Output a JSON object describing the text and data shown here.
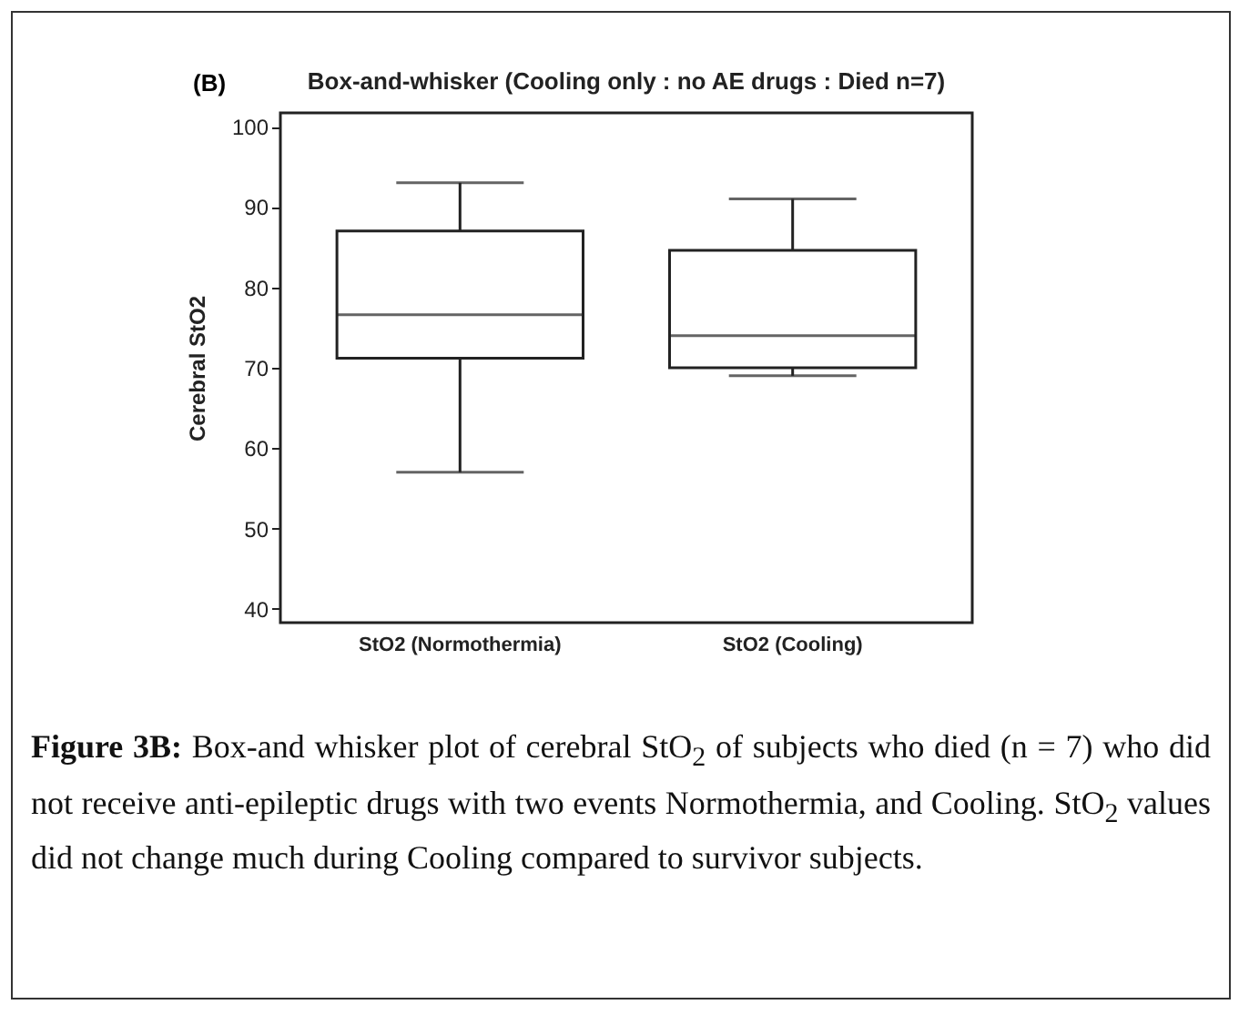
{
  "chart_data": {
    "type": "box",
    "title": "Box-and-whisker (Cooling only : no AE drugs : Died n=7)",
    "ylabel": "Cerebral StO2",
    "categories": [
      "StO2 (Normothermia)",
      "StO2 (Cooling)"
    ],
    "boxes": [
      {
        "low": 57,
        "q1": 71.2,
        "median": 76.6,
        "q3": 87,
        "high": 93
      },
      {
        "low": 69,
        "q1": 70,
        "median": 74,
        "q3": 84.6,
        "high": 91
      }
    ],
    "ylim": [
      38.3,
      101.7
    ],
    "yticks": [
      40,
      50,
      60,
      70,
      80,
      90,
      100
    ],
    "grid": false,
    "annotations": [
      "(B)",
      "Figure 3B: Box-and whisker plot of cerebral StO$_{2}$ of subjects who died (n = 7) who did not receive anti-epileptic drugs with two events Normothermia, and Cooling. StO$_{2}$ values did not change much during Cooling compared to survivor subjects."
    ]
  }
}
